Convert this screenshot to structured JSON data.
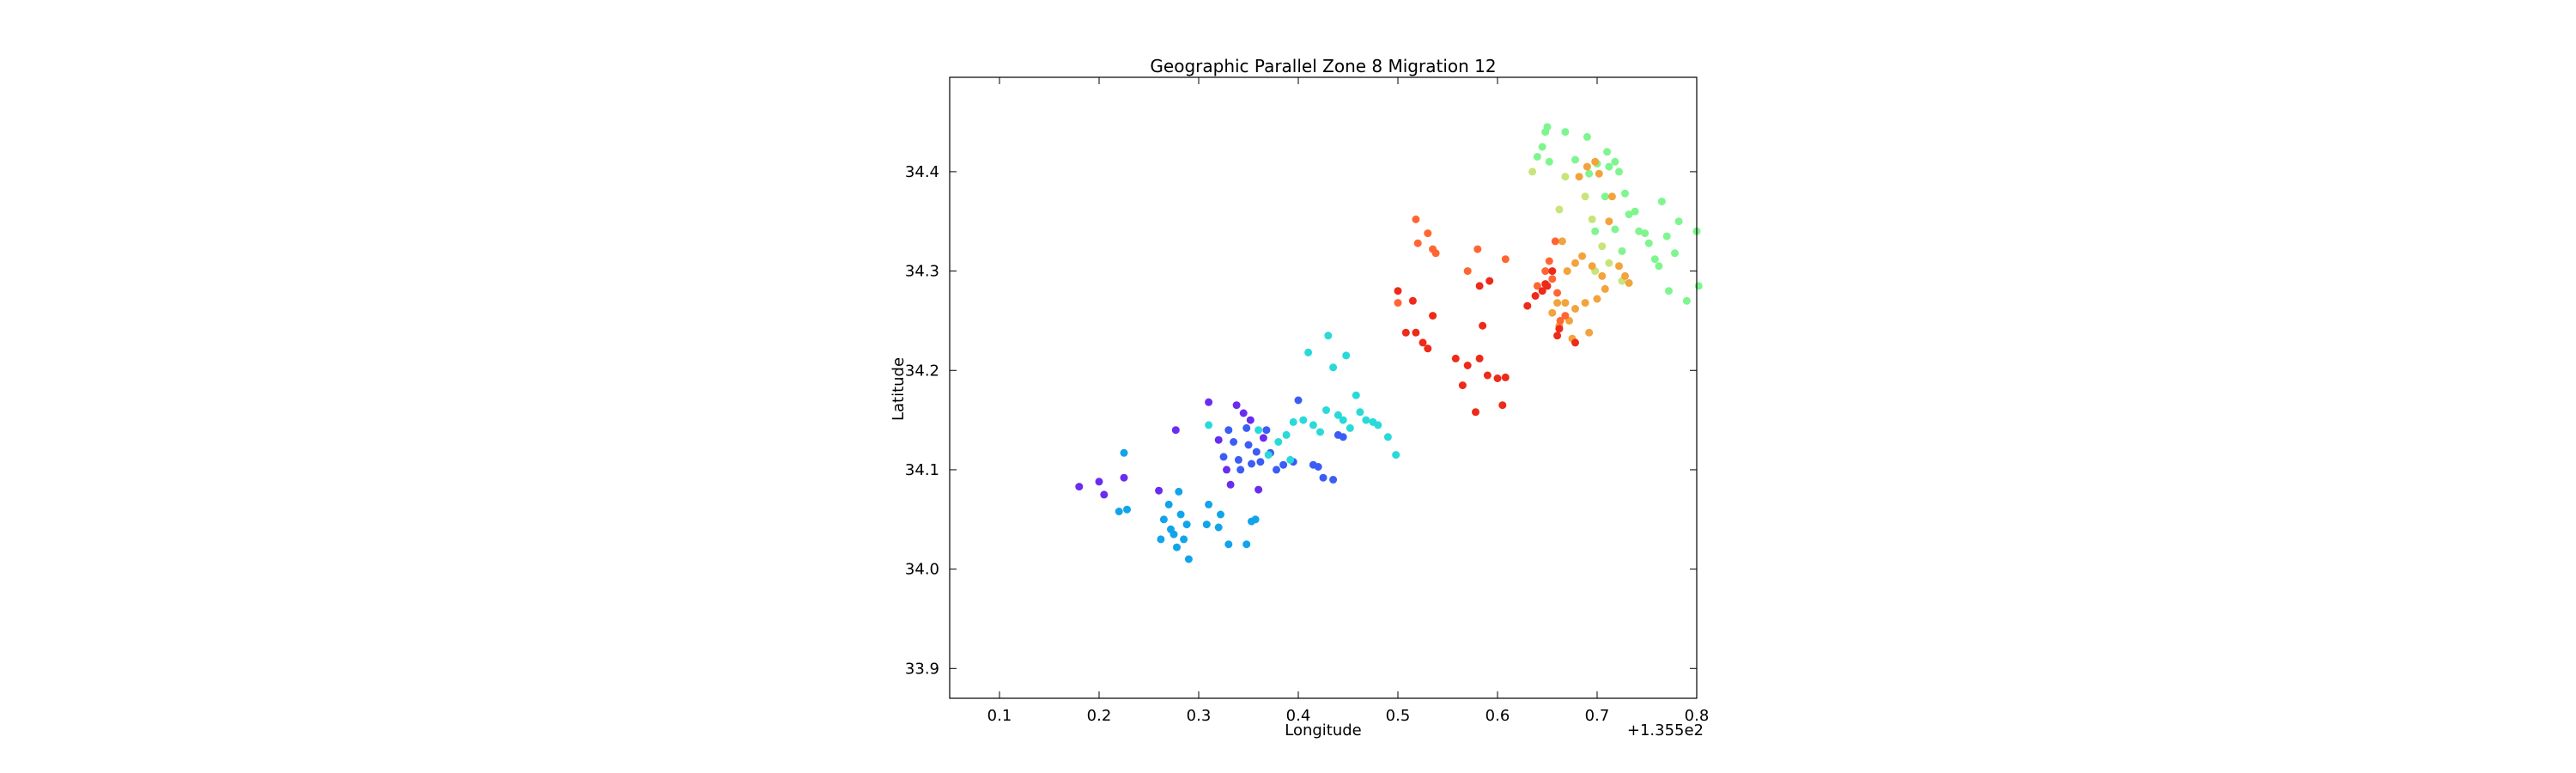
{
  "chart_data": {
    "type": "scatter",
    "title": "Geographic Parallel Zone 8 Migration 12",
    "xlabel": "Longitude",
    "ylabel": "Latitude",
    "x_offset_label": "+1.355e2",
    "x_offset": 135.5,
    "xlim": [
      135.55,
      136.3
    ],
    "ylim": [
      33.87,
      34.495
    ],
    "x_ticks": [
      0.1,
      0.2,
      0.3,
      0.4,
      0.5,
      0.6,
      0.7,
      0.8
    ],
    "x_tick_labels": [
      "0.1",
      "0.2",
      "0.3",
      "0.4",
      "0.5",
      "0.6",
      "0.7",
      "0.8"
    ],
    "y_ticks": [
      33.9,
      34.0,
      34.1,
      34.2,
      34.3,
      34.4
    ],
    "y_tick_labels": [
      "33.9",
      "34.0",
      "34.1",
      "34.2",
      "34.3",
      "34.4"
    ],
    "grid": false,
    "colormap": "rainbow",
    "clusters": [
      {
        "color": "#6a2cf0",
        "points": [
          [
            135.68,
            34.083
          ],
          [
            135.7,
            34.088
          ],
          [
            135.705,
            34.075
          ],
          [
            135.725,
            34.092
          ],
          [
            135.76,
            34.079
          ],
          [
            135.777,
            34.14
          ],
          [
            135.81,
            34.168
          ],
          [
            135.82,
            34.13
          ],
          [
            135.828,
            34.1
          ],
          [
            135.838,
            34.165
          ],
          [
            135.845,
            34.157
          ],
          [
            135.852,
            34.15
          ],
          [
            135.832,
            34.085
          ],
          [
            135.86,
            34.08
          ],
          [
            135.865,
            34.132
          ]
        ]
      },
      {
        "color": "#3b5cf5",
        "points": [
          [
            135.825,
            34.113
          ],
          [
            135.83,
            34.14
          ],
          [
            135.835,
            34.128
          ],
          [
            135.84,
            34.11
          ],
          [
            135.842,
            34.1
          ],
          [
            135.848,
            34.142
          ],
          [
            135.85,
            34.125
          ],
          [
            135.853,
            34.106
          ],
          [
            135.858,
            34.118
          ],
          [
            135.862,
            34.108
          ],
          [
            135.868,
            34.14
          ],
          [
            135.872,
            34.117
          ],
          [
            135.878,
            34.1
          ],
          [
            135.885,
            34.105
          ],
          [
            135.895,
            34.108
          ],
          [
            135.9,
            34.17
          ],
          [
            135.92,
            34.103
          ],
          [
            135.925,
            34.092
          ],
          [
            135.935,
            34.09
          ],
          [
            135.94,
            34.135
          ],
          [
            135.945,
            34.133
          ],
          [
            135.915,
            34.105
          ]
        ]
      },
      {
        "color": "#12a4ea",
        "points": [
          [
            135.72,
            34.058
          ],
          [
            135.725,
            34.117
          ],
          [
            135.728,
            34.06
          ],
          [
            135.762,
            34.03
          ],
          [
            135.765,
            34.05
          ],
          [
            135.77,
            34.065
          ],
          [
            135.772,
            34.04
          ],
          [
            135.775,
            34.035
          ],
          [
            135.778,
            34.022
          ],
          [
            135.78,
            34.078
          ],
          [
            135.782,
            34.055
          ],
          [
            135.785,
            34.03
          ],
          [
            135.788,
            34.045
          ],
          [
            135.79,
            34.01
          ],
          [
            135.808,
            34.045
          ],
          [
            135.81,
            34.065
          ],
          [
            135.82,
            34.042
          ],
          [
            135.822,
            34.055
          ],
          [
            135.83,
            34.025
          ],
          [
            135.848,
            34.025
          ],
          [
            135.853,
            34.048
          ],
          [
            135.857,
            34.05
          ]
        ]
      },
      {
        "color": "#2ad9d9",
        "points": [
          [
            135.81,
            34.145
          ],
          [
            135.86,
            34.14
          ],
          [
            135.88,
            34.128
          ],
          [
            135.888,
            34.135
          ],
          [
            135.895,
            34.148
          ],
          [
            135.905,
            34.15
          ],
          [
            135.91,
            34.218
          ],
          [
            135.915,
            34.145
          ],
          [
            135.922,
            34.138
          ],
          [
            135.928,
            34.16
          ],
          [
            135.93,
            34.235
          ],
          [
            135.935,
            34.203
          ],
          [
            135.94,
            34.155
          ],
          [
            135.945,
            34.15
          ],
          [
            135.948,
            34.215
          ],
          [
            135.952,
            34.142
          ],
          [
            135.958,
            34.175
          ],
          [
            135.962,
            34.158
          ],
          [
            135.968,
            34.15
          ],
          [
            135.975,
            34.148
          ],
          [
            135.98,
            34.145
          ],
          [
            135.99,
            34.133
          ],
          [
            135.998,
            34.115
          ],
          [
            135.87,
            34.115
          ],
          [
            135.892,
            34.11
          ]
        ]
      },
      {
        "color": "#7ff58f",
        "points": [
          [
            136.14,
            34.415
          ],
          [
            136.145,
            34.425
          ],
          [
            136.148,
            34.44
          ],
          [
            136.15,
            34.445
          ],
          [
            136.152,
            34.41
          ],
          [
            136.168,
            34.44
          ],
          [
            136.178,
            34.412
          ],
          [
            136.19,
            34.435
          ],
          [
            136.192,
            34.398
          ],
          [
            136.2,
            34.408
          ],
          [
            136.21,
            34.42
          ],
          [
            136.212,
            34.405
          ],
          [
            136.218,
            34.41
          ],
          [
            136.222,
            34.4
          ],
          [
            136.228,
            34.378
          ],
          [
            136.232,
            34.357
          ],
          [
            136.238,
            34.36
          ],
          [
            136.242,
            34.34
          ],
          [
            136.248,
            34.338
          ],
          [
            136.252,
            34.328
          ],
          [
            136.258,
            34.312
          ],
          [
            136.262,
            34.305
          ],
          [
            136.265,
            34.37
          ],
          [
            136.27,
            34.335
          ],
          [
            136.272,
            34.28
          ],
          [
            136.278,
            34.318
          ],
          [
            136.282,
            34.35
          ],
          [
            136.29,
            34.27
          ],
          [
            136.3,
            34.34
          ],
          [
            136.302,
            34.285
          ],
          [
            136.208,
            34.375
          ],
          [
            136.218,
            34.342
          ],
          [
            136.225,
            34.32
          ],
          [
            136.198,
            34.34
          ]
        ]
      },
      {
        "color": "#c8e47a",
        "points": [
          [
            136.135,
            34.4
          ],
          [
            136.162,
            34.362
          ],
          [
            136.168,
            34.395
          ],
          [
            136.205,
            34.325
          ],
          [
            136.212,
            34.308
          ],
          [
            136.195,
            34.352
          ],
          [
            136.188,
            34.375
          ],
          [
            136.225,
            34.29
          ],
          [
            136.198,
            34.3
          ]
        ]
      },
      {
        "color": "#f2a33c",
        "points": [
          [
            136.155,
            34.258
          ],
          [
            136.16,
            34.268
          ],
          [
            136.162,
            34.245
          ],
          [
            136.165,
            34.33
          ],
          [
            136.17,
            34.3
          ],
          [
            136.172,
            34.25
          ],
          [
            136.175,
            34.232
          ],
          [
            136.178,
            34.262
          ],
          [
            136.182,
            34.395
          ],
          [
            136.185,
            34.315
          ],
          [
            136.188,
            34.268
          ],
          [
            136.19,
            34.405
          ],
          [
            136.192,
            34.238
          ],
          [
            136.195,
            34.305
          ],
          [
            136.198,
            34.41
          ],
          [
            136.2,
            34.272
          ],
          [
            136.202,
            34.398
          ],
          [
            136.205,
            34.295
          ],
          [
            136.208,
            34.282
          ],
          [
            136.212,
            34.35
          ],
          [
            136.215,
            34.375
          ],
          [
            136.222,
            34.305
          ],
          [
            136.228,
            34.295
          ],
          [
            136.232,
            34.288
          ],
          [
            136.178,
            34.308
          ],
          [
            136.168,
            34.268
          ]
        ]
      },
      {
        "color": "#ff6633",
        "points": [
          [
            136.0,
            34.268
          ],
          [
            136.018,
            34.352
          ],
          [
            136.02,
            34.328
          ],
          [
            136.03,
            34.338
          ],
          [
            136.035,
            34.322
          ],
          [
            136.038,
            34.318
          ],
          [
            136.07,
            34.3
          ],
          [
            136.08,
            34.322
          ],
          [
            136.108,
            34.312
          ],
          [
            136.14,
            34.285
          ],
          [
            136.148,
            34.3
          ],
          [
            136.152,
            34.31
          ],
          [
            136.155,
            34.292
          ],
          [
            136.158,
            34.33
          ],
          [
            136.16,
            34.278
          ],
          [
            136.163,
            34.25
          ],
          [
            136.168,
            34.255
          ]
        ]
      },
      {
        "color": "#ee2a18",
        "points": [
          [
            136.0,
            34.28
          ],
          [
            136.008,
            34.238
          ],
          [
            136.015,
            34.27
          ],
          [
            136.018,
            34.238
          ],
          [
            136.025,
            34.228
          ],
          [
            136.03,
            34.222
          ],
          [
            136.035,
            34.255
          ],
          [
            136.058,
            34.212
          ],
          [
            136.065,
            34.185
          ],
          [
            136.07,
            34.205
          ],
          [
            136.078,
            34.158
          ],
          [
            136.082,
            34.212
          ],
          [
            136.085,
            34.245
          ],
          [
            136.09,
            34.195
          ],
          [
            136.092,
            34.29
          ],
          [
            136.1,
            34.192
          ],
          [
            136.105,
            34.165
          ],
          [
            136.108,
            34.193
          ],
          [
            136.13,
            34.265
          ],
          [
            136.138,
            34.275
          ],
          [
            136.145,
            34.28
          ],
          [
            136.148,
            34.287
          ],
          [
            136.15,
            34.285
          ],
          [
            136.155,
            34.3
          ],
          [
            136.16,
            34.235
          ],
          [
            136.162,
            34.242
          ],
          [
            136.178,
            34.228
          ],
          [
            136.082,
            34.285
          ]
        ]
      }
    ]
  }
}
